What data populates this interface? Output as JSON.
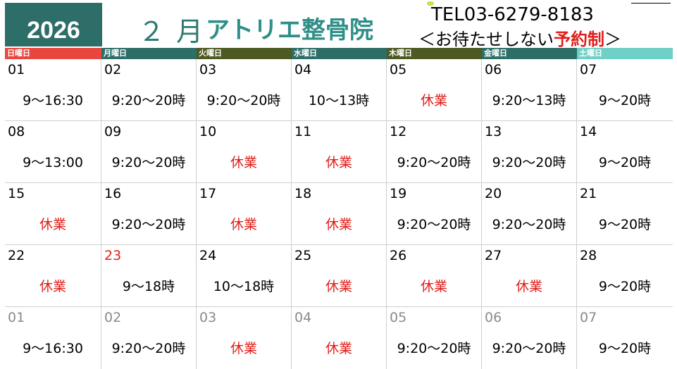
{
  "header": {
    "year": "2026",
    "month": "２ 月",
    "clinic_name": "アトリエ整骨院",
    "tel": "TEL03-6279-8183",
    "note_prefix": "＜お待たせしない",
    "note_highlight": "予約制",
    "note_suffix": "＞"
  },
  "weekdays": [
    {
      "label": "日曜日",
      "color": "#e8463e"
    },
    {
      "label": "月曜日",
      "color": "#2e6e68"
    },
    {
      "label": "火曜日",
      "color": "#4d5a22"
    },
    {
      "label": "水曜日",
      "color": "#2e6e68"
    },
    {
      "label": "木曜日",
      "color": "#4d5a22"
    },
    {
      "label": "金曜日",
      "color": "#2e6e68"
    },
    {
      "label": "土曜日",
      "color": "#6fd0c8"
    }
  ],
  "weeks": [
    [
      {
        "day": "01",
        "hours": "9～16:30"
      },
      {
        "day": "02",
        "hours": "9:20～20時"
      },
      {
        "day": "03",
        "hours": "9:20～20時"
      },
      {
        "day": "04",
        "hours": "10～13時"
      },
      {
        "day": "05",
        "hours": "休業",
        "closed": true
      },
      {
        "day": "06",
        "hours": "9:20～13時"
      },
      {
        "day": "07",
        "hours": "9～20時"
      }
    ],
    [
      {
        "day": "08",
        "hours": "9～13:00"
      },
      {
        "day": "09",
        "hours": "9:20～20時"
      },
      {
        "day": "10",
        "hours": "休業",
        "closed": true
      },
      {
        "day": "11",
        "hours": "休業",
        "closed": true
      },
      {
        "day": "12",
        "hours": "9:20～20時"
      },
      {
        "day": "13",
        "hours": "9:20～20時"
      },
      {
        "day": "14",
        "hours": "9～20時"
      }
    ],
    [
      {
        "day": "15",
        "hours": "休業",
        "closed": true
      },
      {
        "day": "16",
        "hours": "9:20～20時"
      },
      {
        "day": "17",
        "hours": "休業",
        "closed": true
      },
      {
        "day": "18",
        "hours": "休業",
        "closed": true
      },
      {
        "day": "19",
        "hours": "9:20～20時"
      },
      {
        "day": "20",
        "hours": "9:20～20時"
      },
      {
        "day": "21",
        "hours": "9～20時"
      }
    ],
    [
      {
        "day": "22",
        "hours": "休業",
        "closed": true
      },
      {
        "day": "23",
        "hours": "9～18時",
        "holiday": true
      },
      {
        "day": "24",
        "hours": "10～18時"
      },
      {
        "day": "25",
        "hours": "休業",
        "closed": true
      },
      {
        "day": "26",
        "hours": "休業",
        "closed": true
      },
      {
        "day": "27",
        "hours": "休業",
        "closed": true
      },
      {
        "day": "28",
        "hours": "9～20時"
      }
    ],
    [
      {
        "day": "01",
        "hours": "9～16:30",
        "next_month": true
      },
      {
        "day": "02",
        "hours": "9:20～20時",
        "next_month": true
      },
      {
        "day": "03",
        "hours": "休業",
        "closed": true,
        "next_month": true
      },
      {
        "day": "04",
        "hours": "休業",
        "closed": true,
        "next_month": true
      },
      {
        "day": "05",
        "hours": "9:20～20時",
        "next_month": true
      },
      {
        "day": "06",
        "hours": "9:20～20時",
        "next_month": true
      },
      {
        "day": "07",
        "hours": "9～20時",
        "next_month": true
      }
    ]
  ]
}
